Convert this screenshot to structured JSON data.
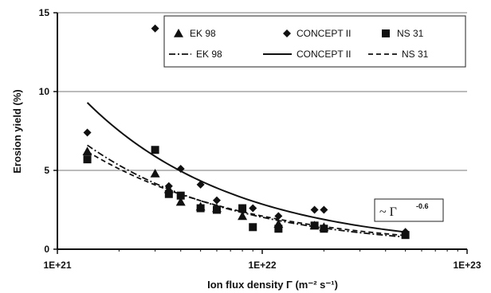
{
  "chart_data": {
    "type": "scatter",
    "x_scale": "log",
    "xlim": [
      1e+21,
      1e+23
    ],
    "ylim": [
      0,
      15
    ],
    "x_ticks": [
      1e+21,
      1e+22,
      1e+23
    ],
    "x_tick_labels": [
      "1E+21",
      "1E+22",
      "1E+23"
    ],
    "y_ticks": [
      0,
      5,
      10,
      15
    ],
    "y_tick_labels": [
      "0",
      "5",
      "10",
      "15"
    ],
    "xlabel": "Ion flux density Γ (m⁻² s⁻¹)",
    "ylabel": "Erosion yield (%)",
    "legend_placement": "top-right",
    "annotation": {
      "text": "~ Γ",
      "exponent": "-0.6",
      "x": 2.6e+22,
      "y": 2.3
    },
    "series": [
      {
        "name": "EK 98",
        "marker": "triangle",
        "x": [
          1.4e+21,
          3e+21,
          3.5e+21,
          4e+21,
          5e+21,
          6e+21,
          8e+21,
          1.2e+22,
          1.8e+22,
          2e+22
        ],
        "y": [
          6.2,
          4.8,
          3.8,
          3.0,
          2.7,
          2.6,
          2.1,
          1.6,
          1.5,
          1.4
        ]
      },
      {
        "name": "CONCEPT II",
        "marker": "diamond",
        "x": [
          1.4e+21,
          3e+21,
          3.5e+21,
          4e+21,
          5e+21,
          6e+21,
          8e+21,
          9e+21,
          1.2e+22,
          1.8e+22,
          2e+22,
          5e+22
        ],
        "y": [
          7.4,
          14.0,
          4.0,
          5.1,
          4.1,
          3.1,
          2.6,
          2.6,
          2.1,
          2.5,
          2.5,
          1.1
        ]
      },
      {
        "name": "NS 31",
        "marker": "square",
        "x": [
          1.4e+21,
          3e+21,
          3.5e+21,
          4e+21,
          5e+21,
          6e+21,
          8e+21,
          9e+21,
          1.2e+22,
          1.8e+22,
          2e+22,
          5e+22
        ],
        "y": [
          5.7,
          6.3,
          3.5,
          3.4,
          2.6,
          2.5,
          2.6,
          1.4,
          1.3,
          1.5,
          1.3,
          0.9
        ]
      }
    ],
    "fits": [
      {
        "name": "EK 98",
        "style": "dash-dot",
        "coefficient": 6.6,
        "x0": 1.4e+21,
        "exponent": -0.6,
        "x_range": [
          1.4e+21,
          5e+22
        ]
      },
      {
        "name": "CONCEPT II",
        "style": "solid",
        "coefficient": 9.3,
        "x0": 1.4e+21,
        "exponent": -0.6,
        "x_range": [
          1.4e+21,
          5e+22
        ]
      },
      {
        "name": "NS 31",
        "style": "dashed",
        "coefficient": 6.2,
        "x0": 1.4e+21,
        "exponent": -0.55,
        "x_range": [
          1.4e+21,
          5e+22
        ]
      }
    ]
  }
}
